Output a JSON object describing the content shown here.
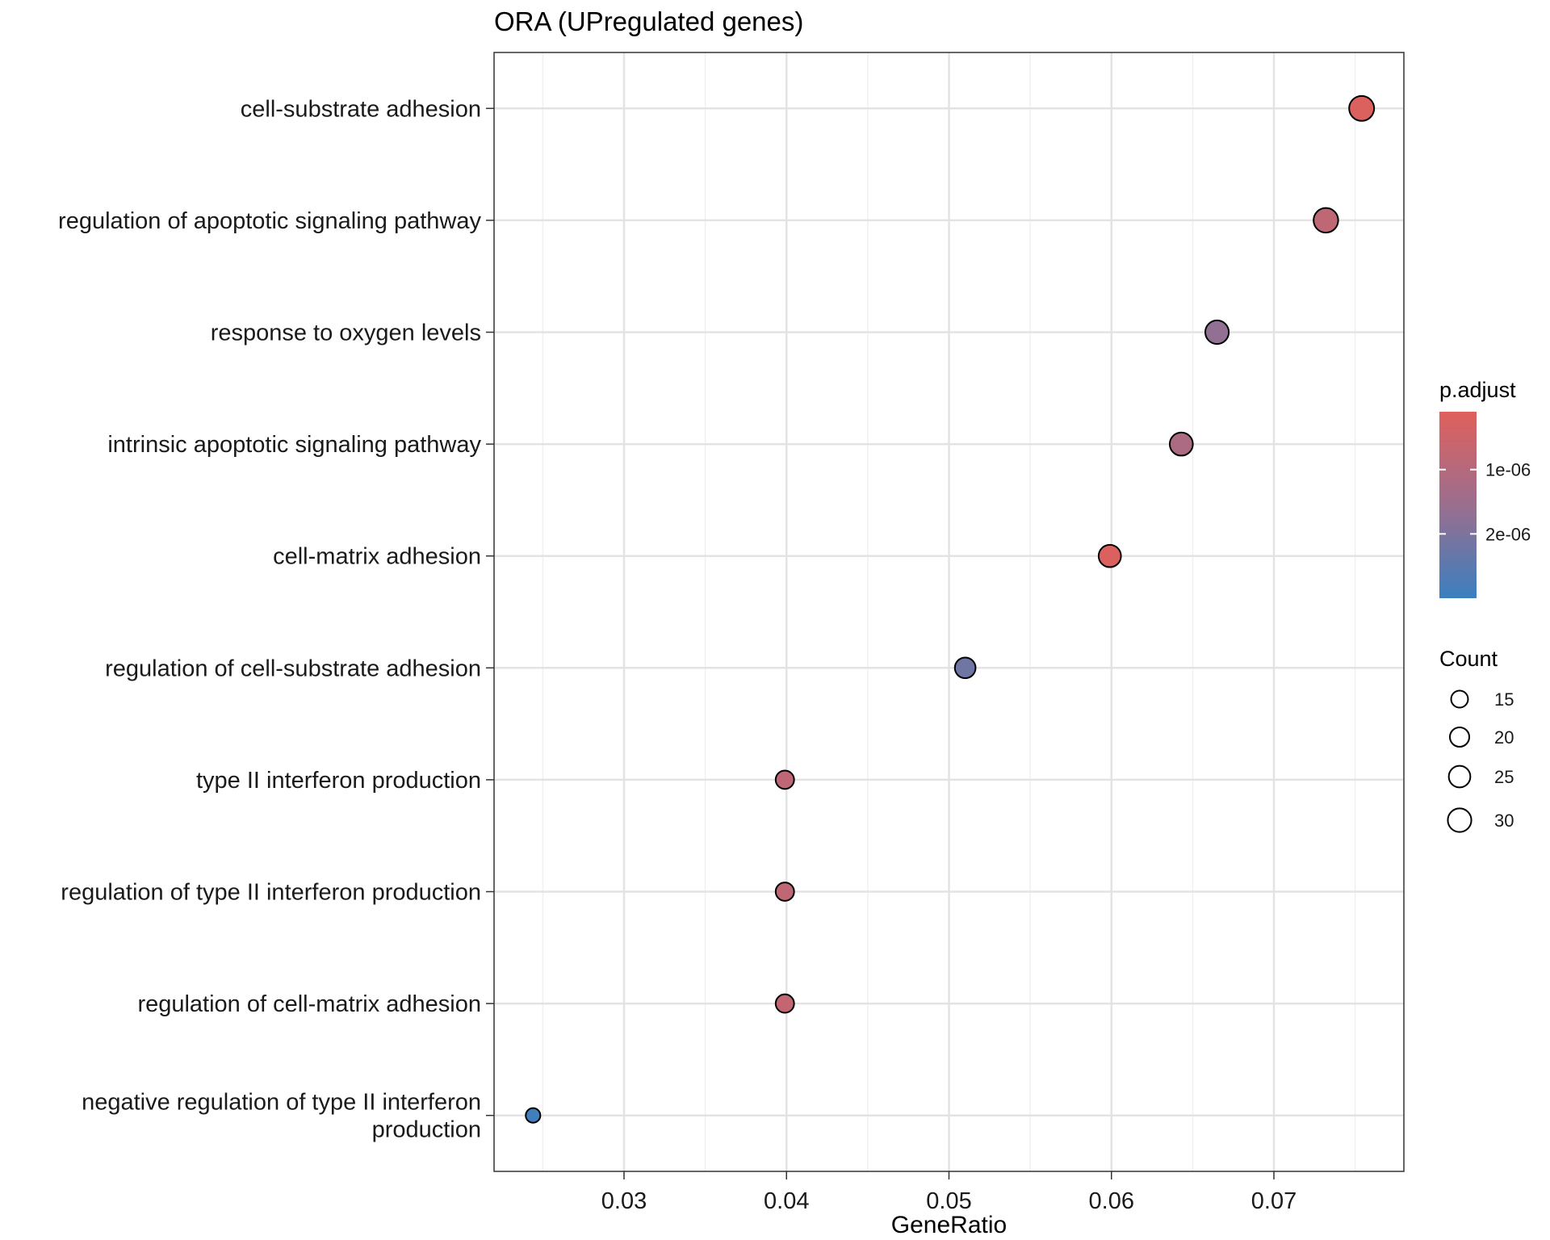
{
  "chart_data": {
    "type": "scatter",
    "title": "ORA (UPregulated genes)",
    "xlabel": "GeneRatio",
    "ylabel": "",
    "xlim": [
      0.022,
      0.078
    ],
    "x_ticks": [
      0.03,
      0.04,
      0.05,
      0.06,
      0.07
    ],
    "x_tick_labels": [
      "0.03",
      "0.04",
      "0.05",
      "0.06",
      "0.07"
    ],
    "grid": true,
    "categories": [
      "cell-substrate adhesion",
      "regulation of apoptotic signaling pathway",
      "response to oxygen levels",
      "intrinsic apoptotic signaling pathway",
      "cell-matrix adhesion",
      "regulation of cell-substrate adhesion",
      "type II interferon production",
      "regulation of type II interferon production",
      "regulation of cell-matrix adhesion",
      "negative regulation of type II interferon production"
    ],
    "category_label_lines": [
      [
        "cell-substrate adhesion"
      ],
      [
        "regulation of apoptotic signaling pathway"
      ],
      [
        "response to oxygen levels"
      ],
      [
        "intrinsic apoptotic signaling pathway"
      ],
      [
        "cell-matrix adhesion"
      ],
      [
        "regulation of cell-substrate adhesion"
      ],
      [
        "type II interferon production"
      ],
      [
        "regulation of type II interferon production"
      ],
      [
        "regulation of cell-matrix adhesion"
      ],
      [
        "negative regulation of type II interferon",
        "production"
      ]
    ],
    "points": [
      {
        "term": "cell-substrate adhesion",
        "gene_ratio": 0.0754,
        "count": 34,
        "p_adjust": 2e-07
      },
      {
        "term": "regulation of apoptotic signaling pathway",
        "gene_ratio": 0.0732,
        "count": 33,
        "p_adjust": 8e-07
      },
      {
        "term": "response to oxygen levels",
        "gene_ratio": 0.0665,
        "count": 30,
        "p_adjust": 1.7e-06
      },
      {
        "term": "intrinsic apoptotic signaling pathway",
        "gene_ratio": 0.0643,
        "count": 29,
        "p_adjust": 1.2e-06
      },
      {
        "term": "cell-matrix adhesion",
        "gene_ratio": 0.0599,
        "count": 27,
        "p_adjust": 2e-07
      },
      {
        "term": "regulation of cell-substrate adhesion",
        "gene_ratio": 0.051,
        "count": 23,
        "p_adjust": 2.2e-06
      },
      {
        "term": "type II interferon production",
        "gene_ratio": 0.0399,
        "count": 18,
        "p_adjust": 8e-07
      },
      {
        "term": "regulation of type II interferon production",
        "gene_ratio": 0.0399,
        "count": 18,
        "p_adjust": 8e-07
      },
      {
        "term": "regulation of cell-matrix adhesion",
        "gene_ratio": 0.0399,
        "count": 18,
        "p_adjust": 7e-07
      },
      {
        "term": "negative regulation of type II interferon production",
        "gene_ratio": 0.0244,
        "count": 11,
        "p_adjust": 2.9e-06
      }
    ],
    "color_legend": {
      "title": "p.adjust",
      "low_color": "#E0605C",
      "mid_color": "#9B6E8E",
      "high_color": "#3A7FBF",
      "range": [
        1e-07,
        3e-06
      ],
      "tick_values": [
        1e-06,
        2e-06
      ],
      "tick_labels": [
        "1e-06",
        "2e-06"
      ]
    },
    "size_legend": {
      "title": "Count",
      "values": [
        15,
        20,
        25,
        30
      ],
      "labels": [
        "15",
        "20",
        "25",
        "30"
      ]
    }
  }
}
